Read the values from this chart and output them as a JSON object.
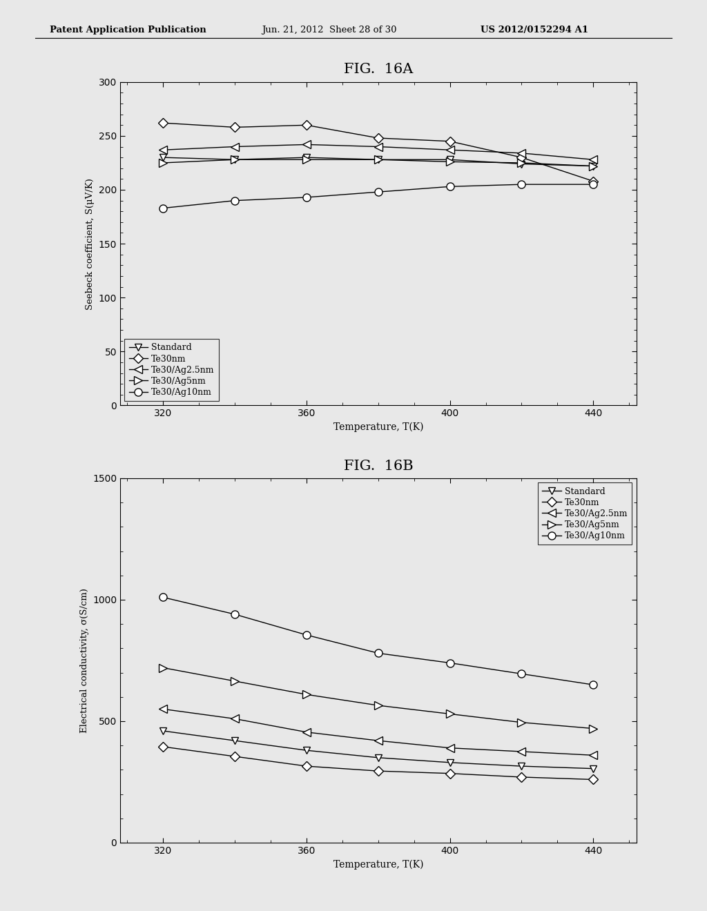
{
  "header_left": "Patent Application Publication",
  "header_mid": "Jun. 21, 2012  Sheet 28 of 30",
  "header_right": "US 2012/0152294 A1",
  "fig_title_A": "FIG.  16A",
  "fig_title_B": "FIG.  16B",
  "temp_A": [
    320,
    340,
    360,
    380,
    400,
    420,
    440
  ],
  "seebeck_standard": [
    230,
    228,
    230,
    228,
    228,
    224,
    222
  ],
  "seebeck_te30nm": [
    262,
    258,
    260,
    248,
    245,
    230,
    208
  ],
  "seebeck_te30ag25": [
    237,
    240,
    242,
    240,
    237,
    234,
    228
  ],
  "seebeck_te30ag5": [
    225,
    228,
    228,
    228,
    226,
    225,
    222
  ],
  "seebeck_te30ag10": [
    183,
    190,
    193,
    198,
    203,
    205,
    205
  ],
  "temp_B": [
    320,
    340,
    360,
    380,
    400,
    420,
    440
  ],
  "conduct_standard": [
    460,
    420,
    380,
    350,
    330,
    315,
    305
  ],
  "conduct_te30nm": [
    395,
    355,
    315,
    295,
    285,
    270,
    260
  ],
  "conduct_te30ag25": [
    550,
    510,
    455,
    420,
    390,
    375,
    360
  ],
  "conduct_te30ag5": [
    720,
    665,
    610,
    565,
    530,
    495,
    470
  ],
  "conduct_te30ag10": [
    1010,
    940,
    855,
    780,
    740,
    695,
    650
  ],
  "ylabel_A": "Seebeck coefficient, S(μV/K)",
  "ylabel_B": "Electrical conductivity, σ(S/cm)",
  "xlabel": "Temperature, T(K)",
  "ylim_A": [
    0,
    300
  ],
  "ylim_B": [
    0,
    1500
  ],
  "xlim": [
    308,
    452
  ],
  "yticks_A": [
    0,
    50,
    100,
    150,
    200,
    250,
    300
  ],
  "yticks_B": [
    0,
    500,
    1000,
    1500
  ],
  "xticks": [
    320,
    360,
    400,
    440
  ],
  "page_bg": "#e8e8e8"
}
